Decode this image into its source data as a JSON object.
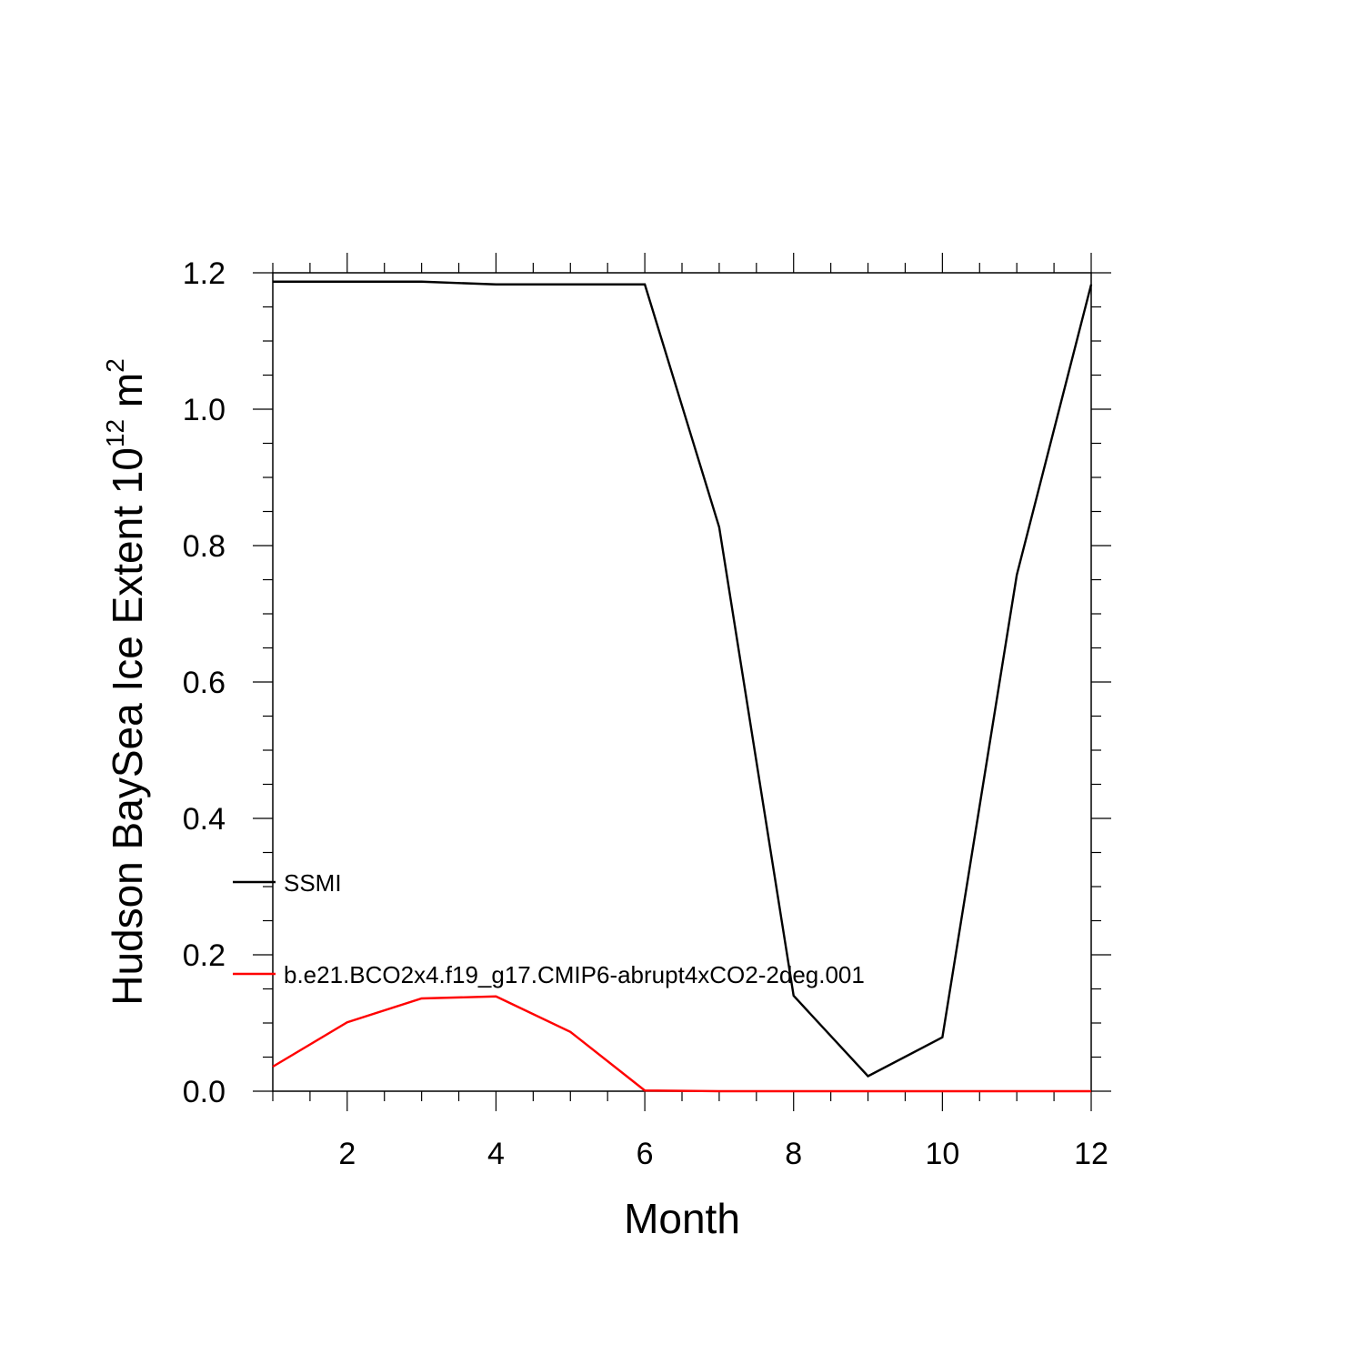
{
  "chart_data": {
    "type": "line",
    "title": "",
    "xlabel": "Month",
    "ylabel": {
      "prefix": "Hudson BaySea Ice Extent 10",
      "exp1": "12",
      "mid": " m",
      "exp2": "2"
    },
    "xlim": [
      1,
      12
    ],
    "ylim": [
      0,
      1.2
    ],
    "x_ticks": [
      2,
      4,
      6,
      8,
      10,
      12
    ],
    "y_ticks": [
      "0.0",
      "0.2",
      "0.4",
      "0.6",
      "0.8",
      "1.0",
      "1.2"
    ],
    "grid": false,
    "legend_position": "left-inside",
    "x": [
      1,
      2,
      3,
      4,
      5,
      6,
      7,
      8,
      9,
      10,
      11,
      12
    ],
    "series": [
      {
        "name": "SSMI",
        "color": "#000000",
        "values": [
          1.187,
          1.187,
          1.187,
          1.183,
          1.183,
          1.183,
          0.827,
          0.14,
          0.022,
          0.079,
          0.757,
          1.183
        ]
      },
      {
        "name": "b.e21.BCO2x4.f19_g17.CMIP6-abrupt4xCO2-2deg.001",
        "color": "#ff0000",
        "values": [
          0.036,
          0.101,
          0.136,
          0.139,
          0.087,
          0.001,
          0.0,
          0.0,
          0.0,
          0.0,
          0.0,
          0.0
        ]
      }
    ]
  }
}
